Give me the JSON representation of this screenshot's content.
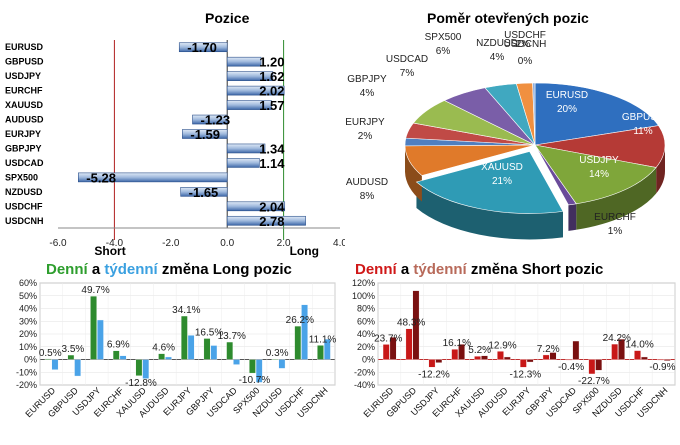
{
  "chart_data": [
    {
      "type": "bar",
      "orientation": "horizontal",
      "title": "Pozice",
      "categories": [
        "EURUSD",
        "GBPUSD",
        "USDJPY",
        "EURCHF",
        "XAUUSD",
        "AUDUSD",
        "EURJPY",
        "GBPJPY",
        "USDCAD",
        "SPX500",
        "NZDUSD",
        "USDCHF",
        "USDCNH"
      ],
      "values": [
        -1.7,
        1.2,
        1.62,
        2.02,
        1.57,
        -1.23,
        -1.59,
        1.34,
        1.14,
        -5.28,
        -1.65,
        2.04,
        2.78
      ],
      "labels": [
        "-1.70",
        "1.20",
        "1.62",
        "2.02",
        "1.57",
        "-1.23",
        "-1.59",
        "1.34",
        "1.14",
        "-5.28",
        "-1.65",
        "2.04",
        "2.78"
      ],
      "xlim": [
        -6.0,
        4.0
      ],
      "xticks": [
        "-6.0",
        "-4.0",
        "-2.0",
        "0.0",
        "2.0",
        "4.0"
      ],
      "threshold_lines": [
        -4.0,
        2.0
      ],
      "short_label": "Short",
      "long_label": "Long"
    },
    {
      "type": "pie",
      "title": "Poměr  otevřených pozic",
      "slices": [
        {
          "name": "EURUSD",
          "value": 20,
          "label": "20%",
          "color": "#2f6fbf"
        },
        {
          "name": "GBPUSD",
          "value": 11,
          "label": "11%",
          "color": "#b53a36"
        },
        {
          "name": "USDJPY",
          "value": 14,
          "label": "14%",
          "color": "#7fa63a"
        },
        {
          "name": "EURCHF",
          "value": 1,
          "label": "1%",
          "color": "#6a4b9a"
        },
        {
          "name": "XAUUSD",
          "value": 21,
          "label": "21%",
          "color": "#2f9bb5"
        },
        {
          "name": "AUDUSD",
          "value": 8,
          "label": "8%",
          "color": "#e07a2a"
        },
        {
          "name": "EURJPY",
          "value": 2,
          "label": "2%",
          "color": "#4f7fc0"
        },
        {
          "name": "GBPJPY",
          "value": 4,
          "label": "4%",
          "color": "#c04a46"
        },
        {
          "name": "USDCAD",
          "value": 7,
          "label": "7%",
          "color": "#9abb50"
        },
        {
          "name": "SPX500",
          "value": 6,
          "label": "6%",
          "color": "#7a5ea8"
        },
        {
          "name": "NZDUSD",
          "value": 4,
          "label": "4%",
          "color": "#40a8c0"
        },
        {
          "name": "USDCHF",
          "value": 2,
          "label": "2%",
          "color": "#f09040"
        },
        {
          "name": "USDCNH",
          "value": 0,
          "label": "0%",
          "color": "#8fb0e0"
        }
      ]
    },
    {
      "type": "bar",
      "title_parts": [
        "Denní",
        " a ",
        "týdenní",
        " změna Long pozic"
      ],
      "categories": [
        "EURUSD",
        "GBPUSD",
        "USDJPY",
        "EURCHF",
        "XAUUSD",
        "AUDUSD",
        "EURJPY",
        "GBPJPY",
        "USDCAD",
        "SPX500",
        "NZDUSD",
        "USDCHF",
        "USDCNH"
      ],
      "series": [
        {
          "values": [
            0.5,
            3.5,
            49.7,
            6.9,
            -12.8,
            4.6,
            34.1,
            16.5,
            13.7,
            -10.7,
            0.3,
            26.2,
            11.1
          ],
          "color": "#2e8b2e"
        },
        {
          "values": [
            -8,
            -13,
            31,
            3,
            -15,
            2,
            19,
            11,
            -4,
            -18,
            -7,
            43,
            16
          ],
          "color": "#4aa3e8"
        }
      ],
      "data_labels": [
        "0.5%",
        "3.5%",
        "49.7%",
        "6.9%",
        "-12.8%",
        "4.6%",
        "34.1%",
        "16.5%",
        "13.7%",
        "-10.7%",
        "0.3%",
        "26.2%",
        "11.1%"
      ],
      "ylim": [
        -20,
        60
      ],
      "yticks": [
        "60%",
        "50%",
        "40%",
        "30%",
        "20%",
        "10%",
        "0%",
        "-10%",
        "-20%"
      ]
    },
    {
      "type": "bar",
      "title_parts": [
        "Denní",
        " a ",
        "týdenní",
        " změna Short pozic"
      ],
      "categories": [
        "EURUSD",
        "GBPUSD",
        "USDJPY",
        "EURCHF",
        "XAUUSD",
        "AUDUSD",
        "EURJPY",
        "GBPJPY",
        "USDCAD",
        "SPX500",
        "NZDUSD",
        "USDCHF",
        "USDCNH"
      ],
      "series": [
        {
          "values": [
            23.7,
            48.3,
            -12.2,
            16.1,
            5.2,
            12.9,
            -12.3,
            7.2,
            -0.4,
            -22.7,
            24.2,
            14.0,
            -0.9
          ],
          "color": "#c81818"
        },
        {
          "values": [
            35,
            108,
            -5,
            24,
            6,
            4,
            -4,
            11,
            29,
            -17,
            32,
            4,
            -2
          ],
          "color": "#7a1010"
        }
      ],
      "data_labels": [
        "23.7%",
        "48.3%",
        "-12.2%",
        "16.1%",
        "5.2%",
        "12.9%",
        "-12.3%",
        "7.2%",
        "-0.4%",
        "-22.7%",
        "24.2%",
        "14.0%",
        "-0.9%"
      ],
      "ylim": [
        -40,
        120
      ],
      "yticks": [
        "120%",
        "100%",
        "80%",
        "60%",
        "40%",
        "20%",
        "0%",
        "-20%",
        "-40%"
      ]
    }
  ]
}
